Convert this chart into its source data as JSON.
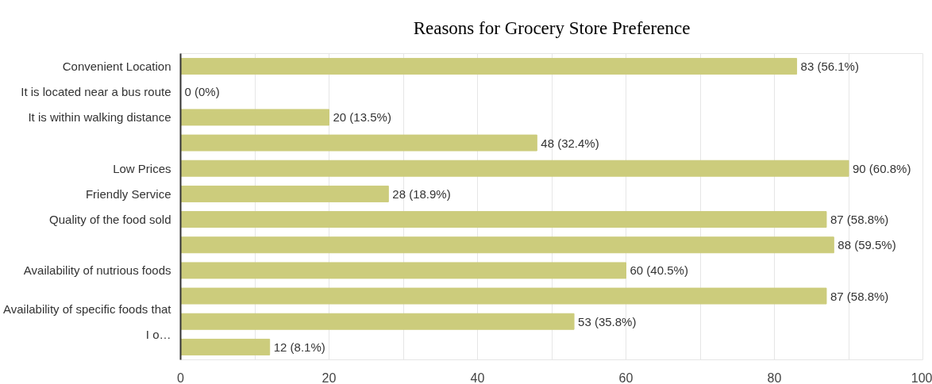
{
  "chart_data": {
    "type": "bar",
    "orientation": "horizontal",
    "title": "Reasons for Grocery Store Preference",
    "categories": [
      "Convenient Location",
      "It is located near a bus route",
      "It is within walking distance",
      null,
      "Low Prices",
      "Friendly Service",
      "Quality of the food sold",
      null,
      "Availability of nutrious foods",
      null,
      "Availability of specific foods that I o…",
      null
    ],
    "values": [
      83,
      0,
      20,
      48,
      90,
      28,
      87,
      88,
      60,
      87,
      53,
      12
    ],
    "value_labels": [
      "83 (56.1%)",
      "0 (0%)",
      "20 (13.5%)",
      "48 (32.4%)",
      "90 (60.8%)",
      "28 (18.9%)",
      "87 (58.8%)",
      "88 (59.5%)",
      "60 (40.5%)",
      "87 (58.8%)",
      "53 (35.8%)",
      "12 (8.1%)"
    ],
    "color": "#cccc7c",
    "xlim": [
      0,
      100
    ],
    "xticks": [
      0,
      {
        "value": 10,
        "label": null
      },
      20,
      {
        "value": 30,
        "label": null
      },
      40,
      {
        "value": 50,
        "label": null
      },
      60,
      {
        "value": 70,
        "label": null
      },
      80,
      {
        "value": 90,
        "label": null
      },
      100
    ],
    "grid": "x"
  }
}
